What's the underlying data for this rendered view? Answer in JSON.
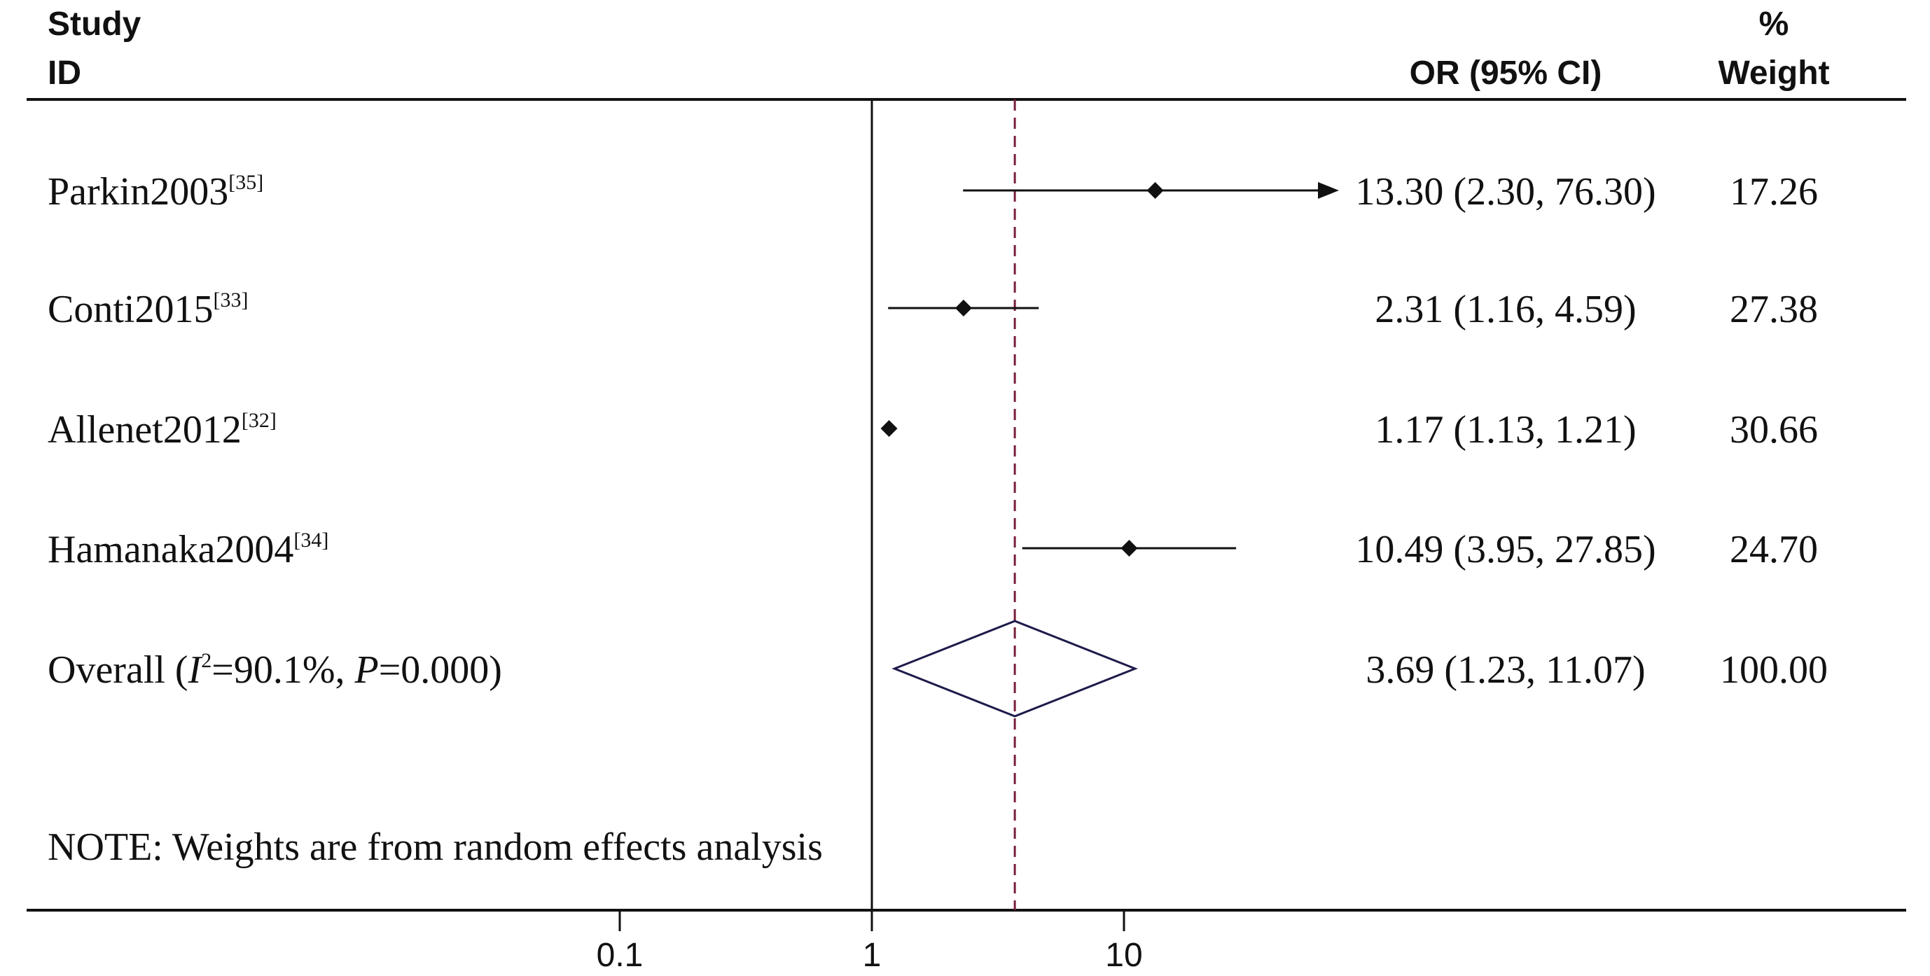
{
  "header": {
    "study": "Study",
    "id": "ID",
    "or_ci": "OR (95% CI)",
    "pct": "%",
    "weight": "Weight"
  },
  "note": "NOTE: Weights are from random effects analysis",
  "chart_data": {
    "type": "forest",
    "x_scale": "log",
    "x_ticks": [
      0.1,
      1,
      10
    ],
    "x_tick_labels": [
      "0.1",
      "1",
      "10"
    ],
    "null_line": 1,
    "pooled_line": 3.69,
    "studies": [
      {
        "name": "Parkin2003",
        "ref": "[35]",
        "or": 13.3,
        "lo": 2.3,
        "hi": 76.3,
        "ci_text": "13.30 (2.30, 76.30)",
        "weight": "17.26",
        "arrow_right": true
      },
      {
        "name": "Conti2015",
        "ref": "[33]",
        "or": 2.31,
        "lo": 1.16,
        "hi": 4.59,
        "ci_text": "2.31 (1.16, 4.59)",
        "weight": "27.38",
        "arrow_right": false
      },
      {
        "name": "Allenet2012",
        "ref": "[32]",
        "or": 1.17,
        "lo": 1.13,
        "hi": 1.21,
        "ci_text": "1.17 (1.13, 1.21)",
        "weight": "30.66",
        "arrow_right": false
      },
      {
        "name": "Hamanaka2004",
        "ref": "[34]",
        "or": 10.49,
        "lo": 3.95,
        "hi": 27.85,
        "ci_text": "10.49 (3.95, 27.85)",
        "weight": "24.70",
        "arrow_right": false
      }
    ],
    "overall": {
      "label_prefix": "Overall  (",
      "i_sym": "I",
      "i_sup": "2",
      "i_val": "=90.1%, ",
      "p_sym": "P",
      "p_val": "=0.000)",
      "or": 3.69,
      "lo": 1.23,
      "hi": 11.07,
      "ci_text": "3.69 (1.23, 11.07)",
      "weight": "100.00"
    },
    "colors": {
      "ink": "#111111",
      "pooled_line": "#7a1f3d",
      "diamond": "#1e1b4b"
    }
  }
}
